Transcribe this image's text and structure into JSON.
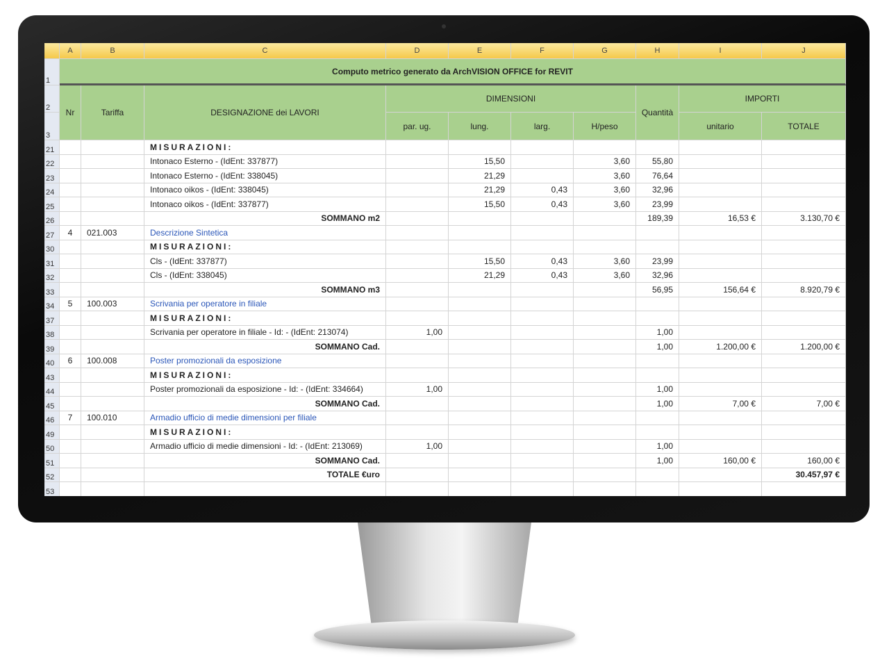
{
  "columns": [
    "A",
    "B",
    "C",
    "D",
    "E",
    "F",
    "G",
    "H",
    "I",
    "J"
  ],
  "title": "Computo metrico generato da ArchVISION OFFICE for REVIT",
  "header": {
    "nr": "Nr",
    "tariffa": "Tariffa",
    "designazione": "DESIGNAZIONE dei LAVORI",
    "dimensioni": "DIMENSIONI",
    "par_ug": "par. ug.",
    "lung": "lung.",
    "larg": "larg.",
    "h_peso": "H/peso",
    "quantita": "Quantità",
    "importi": "IMPORTI",
    "unitario": "unitario",
    "totale": "TOTALE"
  },
  "header_rows": [
    "1",
    "2",
    "3"
  ],
  "rows": [
    {
      "n": "21",
      "c": "MISURAZIONI:",
      "s": "mis"
    },
    {
      "n": "22",
      "c": "Intonaco Esterno - (IdEnt: 337877)",
      "e": "15,50",
      "g": "3,60",
      "h": "55,80"
    },
    {
      "n": "23",
      "c": "Intonaco Esterno - (IdEnt: 338045)",
      "e": "21,29",
      "g": "3,60",
      "h": "76,64"
    },
    {
      "n": "24",
      "c": "Intonaco oikos - (IdEnt: 338045)",
      "e": "21,29",
      "f": "0,43",
      "g": "3,60",
      "h": "32,96"
    },
    {
      "n": "25",
      "c": "Intonaco oikos - (IdEnt: 337877)",
      "e": "15,50",
      "f": "0,43",
      "g": "3,60",
      "h": "23,99"
    },
    {
      "n": "26",
      "c": "SOMMANO m2",
      "s": "sum",
      "h": "189,39",
      "i": "16,53 €",
      "j": "3.130,70 €"
    },
    {
      "n": "27",
      "a": "4",
      "b": "021.003",
      "c": "Descrizione Sintetica",
      "s": "link"
    },
    {
      "n": "30",
      "c": "MISURAZIONI:",
      "s": "mis"
    },
    {
      "n": "31",
      "c": "Cls - (IdEnt: 337877)",
      "e": "15,50",
      "f": "0,43",
      "g": "3,60",
      "h": "23,99"
    },
    {
      "n": "32",
      "c": "Cls - (IdEnt: 338045)",
      "e": "21,29",
      "f": "0,43",
      "g": "3,60",
      "h": "32,96"
    },
    {
      "n": "33",
      "c": "SOMMANO m3",
      "s": "sum",
      "h": "56,95",
      "i": "156,64 €",
      "j": "8.920,79 €"
    },
    {
      "n": "34",
      "a": "5",
      "b": "100.003",
      "c": "Scrivania per operatore in filiale",
      "s": "link"
    },
    {
      "n": "37",
      "c": "MISURAZIONI:",
      "s": "mis"
    },
    {
      "n": "38",
      "c": "Scrivania per operatore in filiale - Id: - (IdEnt: 213074)",
      "d": "1,00",
      "h": "1,00"
    },
    {
      "n": "39",
      "c": "SOMMANO Cad.",
      "s": "sum",
      "h": "1,00",
      "i": "1.200,00 €",
      "j": "1.200,00 €"
    },
    {
      "n": "40",
      "a": "6",
      "b": "100.008",
      "c": "Poster promozionali da esposizione",
      "s": "link"
    },
    {
      "n": "43",
      "c": "MISURAZIONI:",
      "s": "mis"
    },
    {
      "n": "44",
      "c": "Poster promozionali da esposizione - Id: - (IdEnt: 334664)",
      "d": "1,00",
      "h": "1,00"
    },
    {
      "n": "45",
      "c": "SOMMANO Cad.",
      "s": "sum",
      "h": "1,00",
      "i": "7,00 €",
      "j": "7,00 €"
    },
    {
      "n": "46",
      "a": "7",
      "b": "100.010",
      "c": "Armadio ufficio di medie dimensioni per filiale",
      "s": "link"
    },
    {
      "n": "49",
      "c": "MISURAZIONI:",
      "s": "mis"
    },
    {
      "n": "50",
      "c": "Armadio ufficio di medie dimensioni - Id: - (IdEnt: 213069)",
      "d": "1,00",
      "h": "1,00"
    },
    {
      "n": "51",
      "c": "SOMMANO Cad.",
      "s": "sum",
      "h": "1,00",
      "i": "160,00 €",
      "j": "160,00 €"
    },
    {
      "n": "52",
      "c": "TOTALE €uro",
      "s": "sum",
      "j": "30.457,97 €",
      "jb": true
    },
    {
      "n": "53"
    }
  ],
  "colors": {
    "header_green": "#a9d08e",
    "column_header": "#f5c94a",
    "link": "#2a56b8"
  }
}
